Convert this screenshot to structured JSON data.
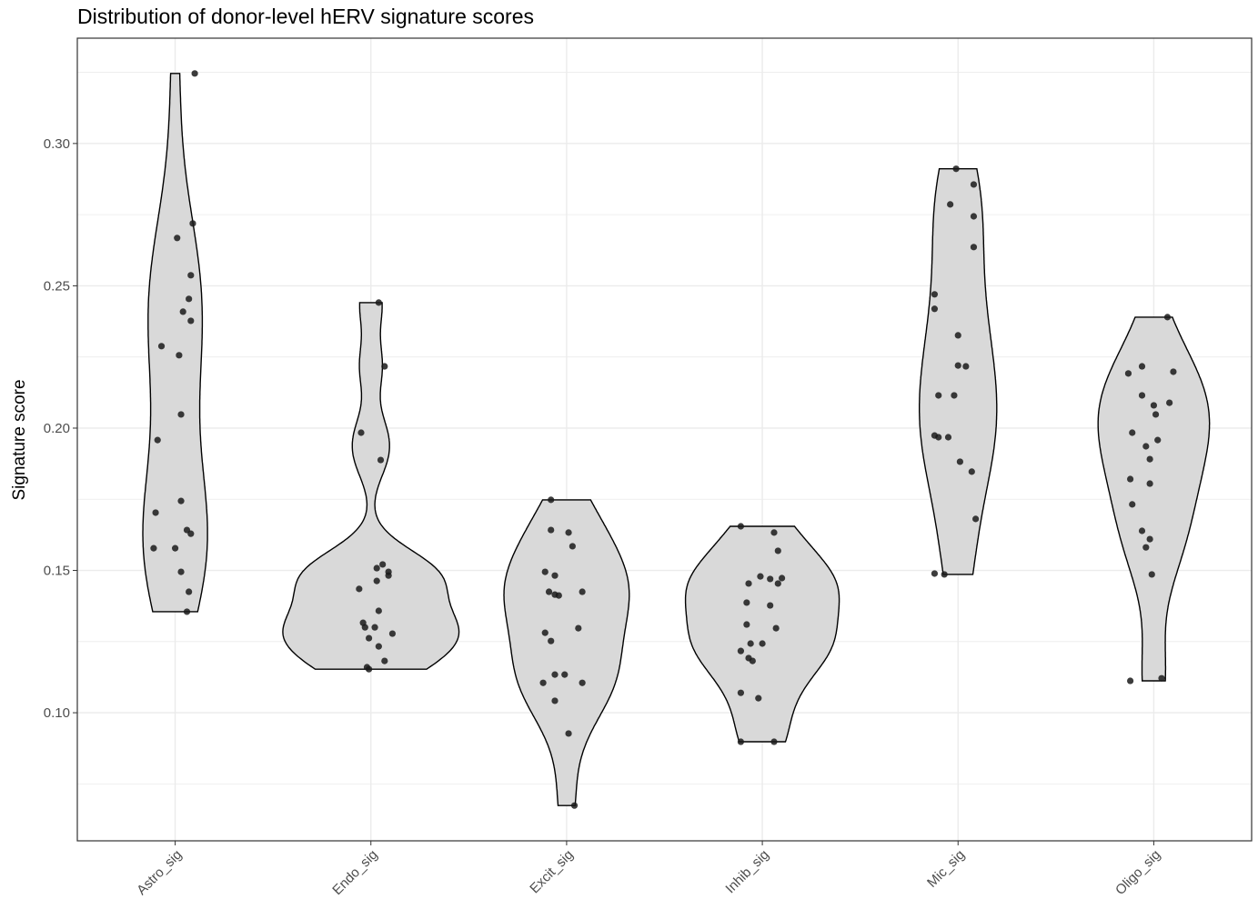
{
  "chart_data": {
    "type": "violin",
    "title": "Distribution of donor-level hERV signature scores",
    "xlabel": "",
    "ylabel": "Signature score",
    "ylim": [
      0.055,
      0.337
    ],
    "yticks": [
      0.1,
      0.15,
      0.2,
      0.25,
      0.3
    ],
    "ytick_labels": [
      "0.10",
      "0.15",
      "0.20",
      "0.25",
      "0.30"
    ],
    "grid": true,
    "legend": "none",
    "colors": {
      "violin_fill": "#d9d9d9",
      "violin_stroke": "#000000",
      "point": "#1a1a1a",
      "grid": "#ebebeb",
      "border": "#333333"
    },
    "categories": [
      "Astro_sig",
      "Endo_sig",
      "Excit_sig",
      "Inhib_sig",
      "Mic_sig",
      "Oligo_sig"
    ],
    "series": [
      {
        "name": "Astro_sig",
        "points": [
          [
            0.1,
            0.3246
          ],
          [
            0.09,
            0.2719
          ],
          [
            0.01,
            0.2668
          ],
          [
            0.08,
            0.2537
          ],
          [
            0.07,
            0.2454
          ],
          [
            0.04,
            0.2409
          ],
          [
            0.08,
            0.2377
          ],
          [
            -0.07,
            0.2288
          ],
          [
            0.02,
            0.2256
          ],
          [
            0.03,
            0.2048
          ],
          [
            -0.09,
            0.1958
          ],
          [
            0.03,
            0.1744
          ],
          [
            -0.1,
            0.1703
          ],
          [
            0.06,
            0.1642
          ],
          [
            0.08,
            0.1629
          ],
          [
            -0.11,
            0.1578
          ],
          [
            0.0,
            0.1578
          ],
          [
            0.03,
            0.1495
          ],
          [
            0.07,
            0.1425
          ],
          [
            0.06,
            0.1355
          ]
        ]
      },
      {
        "name": "Endo_sig",
        "points": [
          [
            0.04,
            0.2441
          ],
          [
            0.07,
            0.2217
          ],
          [
            -0.05,
            0.1984
          ],
          [
            0.05,
            0.1888
          ],
          [
            0.06,
            0.1521
          ],
          [
            0.03,
            0.1508
          ],
          [
            0.09,
            0.1495
          ],
          [
            0.09,
            0.1482
          ],
          [
            -0.06,
            0.1435
          ],
          [
            0.03,
            0.1463
          ],
          [
            0.04,
            0.1358
          ],
          [
            -0.04,
            0.1316
          ],
          [
            -0.03,
            0.13
          ],
          [
            0.02,
            0.13
          ],
          [
            0.11,
            0.1278
          ],
          [
            -0.01,
            0.1262
          ],
          [
            0.04,
            0.1233
          ],
          [
            0.07,
            0.1182
          ],
          [
            -0.02,
            0.116
          ],
          [
            -0.01,
            0.1153
          ]
        ]
      },
      {
        "name": "Excit_sig",
        "points": [
          [
            -0.08,
            0.1748
          ],
          [
            -0.08,
            0.1642
          ],
          [
            0.01,
            0.1633
          ],
          [
            0.03,
            0.1585
          ],
          [
            -0.11,
            0.1495
          ],
          [
            -0.06,
            0.1482
          ],
          [
            -0.09,
            0.1425
          ],
          [
            -0.06,
            0.1415
          ],
          [
            -0.04,
            0.1412
          ],
          [
            0.08,
            0.1425
          ],
          [
            0.06,
            0.1297
          ],
          [
            -0.11,
            0.1281
          ],
          [
            -0.08,
            0.1252
          ],
          [
            -0.06,
            0.1134
          ],
          [
            -0.01,
            0.1134
          ],
          [
            -0.12,
            0.1105
          ],
          [
            0.08,
            0.1105
          ],
          [
            -0.06,
            0.1042
          ],
          [
            0.01,
            0.0927
          ],
          [
            0.04,
            0.0674
          ]
        ]
      },
      {
        "name": "Inhib_sig",
        "points": [
          [
            -0.11,
            0.1655
          ],
          [
            0.06,
            0.1633
          ],
          [
            0.08,
            0.1569
          ],
          [
            -0.01,
            0.1479
          ],
          [
            0.04,
            0.147
          ],
          [
            -0.07,
            0.1454
          ],
          [
            0.1,
            0.1473
          ],
          [
            0.08,
            0.1454
          ],
          [
            -0.08,
            0.1387
          ],
          [
            0.04,
            0.1377
          ],
          [
            -0.08,
            0.131
          ],
          [
            0.07,
            0.1297
          ],
          [
            -0.06,
            0.1243
          ],
          [
            0.0,
            0.1243
          ],
          [
            -0.11,
            0.1217
          ],
          [
            -0.07,
            0.1192
          ],
          [
            -0.05,
            0.1182
          ],
          [
            -0.11,
            0.107
          ],
          [
            -0.02,
            0.1051
          ],
          [
            -0.11,
            0.0898
          ],
          [
            0.06,
            0.0898
          ]
        ]
      },
      {
        "name": "Mic_sig",
        "points": [
          [
            -0.01,
            0.2911
          ],
          [
            0.08,
            0.2856
          ],
          [
            -0.04,
            0.2786
          ],
          [
            0.08,
            0.2744
          ],
          [
            0.08,
            0.2636
          ],
          [
            -0.12,
            0.247
          ],
          [
            -0.12,
            0.2419
          ],
          [
            0.0,
            0.2326
          ],
          [
            0.0,
            0.222
          ],
          [
            0.04,
            0.2217
          ],
          [
            -0.1,
            0.2115
          ],
          [
            -0.02,
            0.2115
          ],
          [
            -0.12,
            0.1974
          ],
          [
            -0.1,
            0.1968
          ],
          [
            -0.05,
            0.1968
          ],
          [
            0.01,
            0.1882
          ],
          [
            0.07,
            0.1847
          ],
          [
            0.09,
            0.1681
          ],
          [
            -0.12,
            0.1489
          ],
          [
            -0.07,
            0.1486
          ]
        ]
      },
      {
        "name": "Oligo_sig",
        "points": [
          [
            0.07,
            0.239
          ],
          [
            -0.06,
            0.2217
          ],
          [
            -0.13,
            0.2192
          ],
          [
            0.1,
            0.2198
          ],
          [
            -0.06,
            0.2115
          ],
          [
            0.0,
            0.208
          ],
          [
            0.08,
            0.2089
          ],
          [
            0.01,
            0.2048
          ],
          [
            -0.11,
            0.1984
          ],
          [
            0.02,
            0.1958
          ],
          [
            -0.04,
            0.1936
          ],
          [
            -0.02,
            0.1891
          ],
          [
            -0.12,
            0.1821
          ],
          [
            -0.02,
            0.1805
          ],
          [
            -0.11,
            0.1732
          ],
          [
            -0.06,
            0.1639
          ],
          [
            -0.02,
            0.161
          ],
          [
            -0.04,
            0.1581
          ],
          [
            -0.01,
            0.1486
          ],
          [
            -0.12,
            0.1112
          ],
          [
            0.04,
            0.1121
          ]
        ]
      }
    ]
  }
}
